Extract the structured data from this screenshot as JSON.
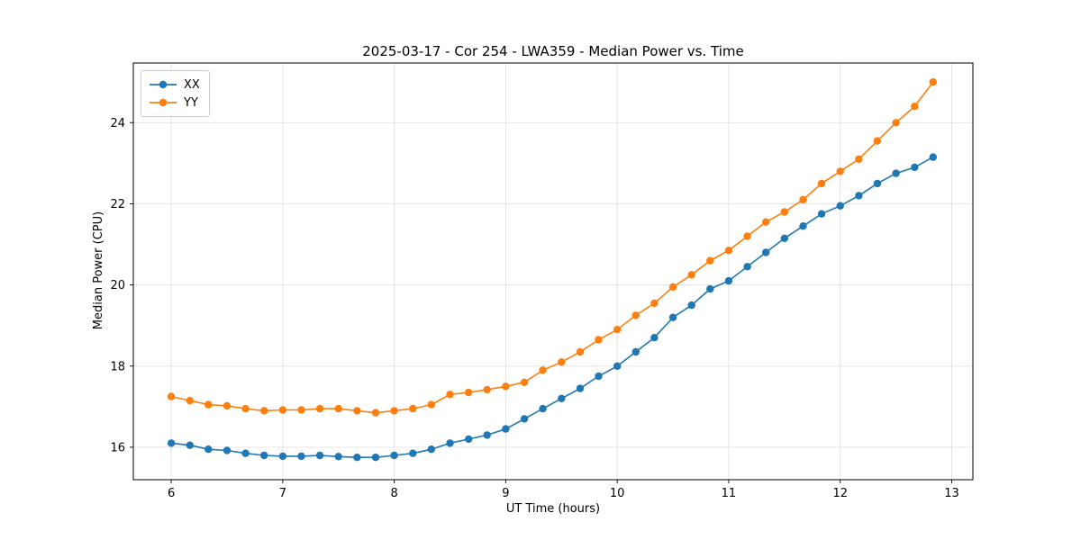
{
  "chart_data": {
    "type": "line",
    "title": "2025-03-17 - Cor 254 - LWA359 - Median Power vs. Time",
    "xlabel": "UT Time (hours)",
    "ylabel": "Median Power (CPU)",
    "xlim": [
      5.66,
      13.19
    ],
    "ylim": [
      15.2,
      25.47
    ],
    "xticks": [
      6,
      7,
      8,
      9,
      10,
      11,
      12,
      13
    ],
    "yticks": [
      16,
      18,
      20,
      22,
      24
    ],
    "grid": true,
    "legend_position": "upper-left",
    "x": [
      6.0,
      6.167,
      6.333,
      6.5,
      6.667,
      6.833,
      7.0,
      7.167,
      7.333,
      7.5,
      7.667,
      7.833,
      8.0,
      8.167,
      8.333,
      8.5,
      8.667,
      8.833,
      9.0,
      9.167,
      9.333,
      9.5,
      9.667,
      9.833,
      10.0,
      10.167,
      10.333,
      10.5,
      10.667,
      10.833,
      11.0,
      11.167,
      11.333,
      11.5,
      11.667,
      11.833,
      12.0,
      12.167,
      12.333,
      12.5,
      12.667,
      12.833
    ],
    "series": [
      {
        "name": "XX",
        "color": "#1f77b4",
        "values": [
          16.1,
          16.05,
          15.95,
          15.92,
          15.85,
          15.8,
          15.78,
          15.78,
          15.8,
          15.77,
          15.75,
          15.75,
          15.8,
          15.85,
          15.95,
          16.1,
          16.2,
          16.3,
          16.45,
          16.7,
          16.95,
          17.2,
          17.45,
          17.75,
          18.0,
          18.35,
          18.7,
          19.2,
          19.5,
          19.9,
          20.1,
          20.45,
          20.8,
          21.15,
          21.45,
          21.75,
          21.95,
          22.2,
          22.5,
          22.75,
          22.9,
          23.15
        ]
      },
      {
        "name": "YY",
        "color": "#ff7f0e",
        "values": [
          17.25,
          17.15,
          17.05,
          17.02,
          16.95,
          16.9,
          16.92,
          16.92,
          16.95,
          16.95,
          16.9,
          16.85,
          16.9,
          16.95,
          17.05,
          17.3,
          17.35,
          17.42,
          17.5,
          17.6,
          17.9,
          18.1,
          18.35,
          18.65,
          18.9,
          19.25,
          19.55,
          19.95,
          20.25,
          20.6,
          20.85,
          21.2,
          21.55,
          21.8,
          22.1,
          22.5,
          22.8,
          23.1,
          23.55,
          24.0,
          24.4,
          25.0
        ]
      }
    ]
  }
}
